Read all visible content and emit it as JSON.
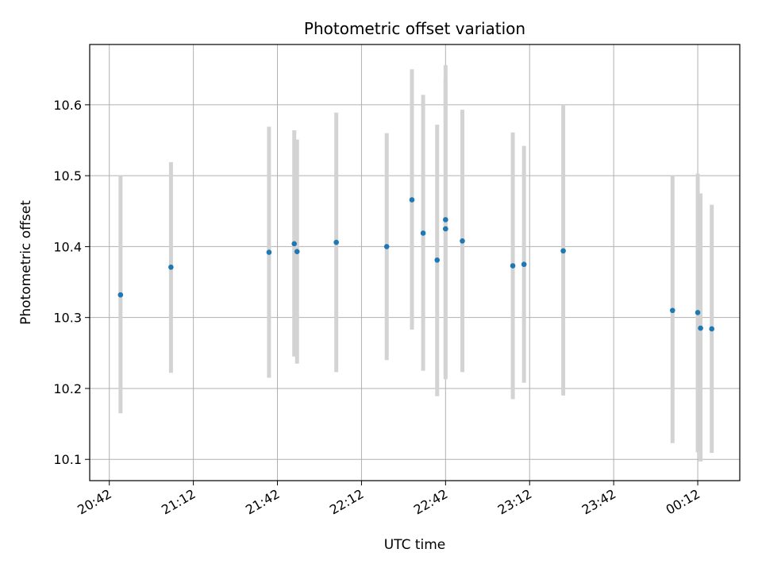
{
  "chart_data": {
    "type": "scatter",
    "title": "Photometric offset variation",
    "xlabel": "UTC time",
    "ylabel": "Photometric offset",
    "x_ticks": [
      {
        "t": "20:42",
        "label": "20:42"
      },
      {
        "t": "21:12",
        "label": "21:12"
      },
      {
        "t": "21:42",
        "label": "21:42"
      },
      {
        "t": "22:12",
        "label": "22:12"
      },
      {
        "t": "22:42",
        "label": "22:42"
      },
      {
        "t": "23:12",
        "label": "23:12"
      },
      {
        "t": "23:42",
        "label": "23:42"
      },
      {
        "t": "00:12",
        "label": "00:12"
      }
    ],
    "y_ticks": [
      10.1,
      10.2,
      10.3,
      10.4,
      10.5,
      10.6
    ],
    "xlim": [
      "20:35",
      "00:27"
    ],
    "ylim": [
      10.07,
      10.685
    ],
    "grid": true,
    "colors": {
      "points": "#1f77b4",
      "errorbars": "#d3d3d3",
      "grid": "#b0b0b0"
    },
    "points": [
      {
        "x": "20:46",
        "y": 10.332,
        "ylo": 10.165,
        "yhi": 10.499
      },
      {
        "x": "21:04",
        "y": 10.371,
        "ylo": 10.222,
        "yhi": 10.519
      },
      {
        "x": "21:39",
        "y": 10.392,
        "ylo": 10.215,
        "yhi": 10.569
      },
      {
        "x": "21:48",
        "y": 10.404,
        "ylo": 10.245,
        "yhi": 10.564
      },
      {
        "x": "21:49",
        "y": 10.393,
        "ylo": 10.235,
        "yhi": 10.551
      },
      {
        "x": "22:03",
        "y": 10.406,
        "ylo": 10.223,
        "yhi": 10.589
      },
      {
        "x": "22:21",
        "y": 10.4,
        "ylo": 10.24,
        "yhi": 10.56
      },
      {
        "x": "22:30",
        "y": 10.466,
        "ylo": 10.283,
        "yhi": 10.65
      },
      {
        "x": "22:34",
        "y": 10.419,
        "ylo": 10.225,
        "yhi": 10.614
      },
      {
        "x": "22:39",
        "y": 10.381,
        "ylo": 10.189,
        "yhi": 10.572
      },
      {
        "x": "22:42",
        "y": 10.438,
        "ylo": 10.22,
        "yhi": 10.656
      },
      {
        "x": "22:42",
        "y": 10.425,
        "ylo": 10.213,
        "yhi": 10.636
      },
      {
        "x": "22:48",
        "y": 10.408,
        "ylo": 10.223,
        "yhi": 10.593
      },
      {
        "x": "23:06",
        "y": 10.373,
        "ylo": 10.185,
        "yhi": 10.561
      },
      {
        "x": "23:10",
        "y": 10.375,
        "ylo": 10.208,
        "yhi": 10.542
      },
      {
        "x": "23:24",
        "y": 10.394,
        "ylo": 10.19,
        "yhi": 10.6
      },
      {
        "x": "00:03",
        "y": 10.31,
        "ylo": 10.123,
        "yhi": 10.499
      },
      {
        "x": "00:12",
        "y": 10.307,
        "ylo": 10.11,
        "yhi": 10.503
      },
      {
        "x": "00:13",
        "y": 10.285,
        "ylo": 10.097,
        "yhi": 10.475
      },
      {
        "x": "00:17",
        "y": 10.284,
        "ylo": 10.109,
        "yhi": 10.459
      }
    ]
  }
}
